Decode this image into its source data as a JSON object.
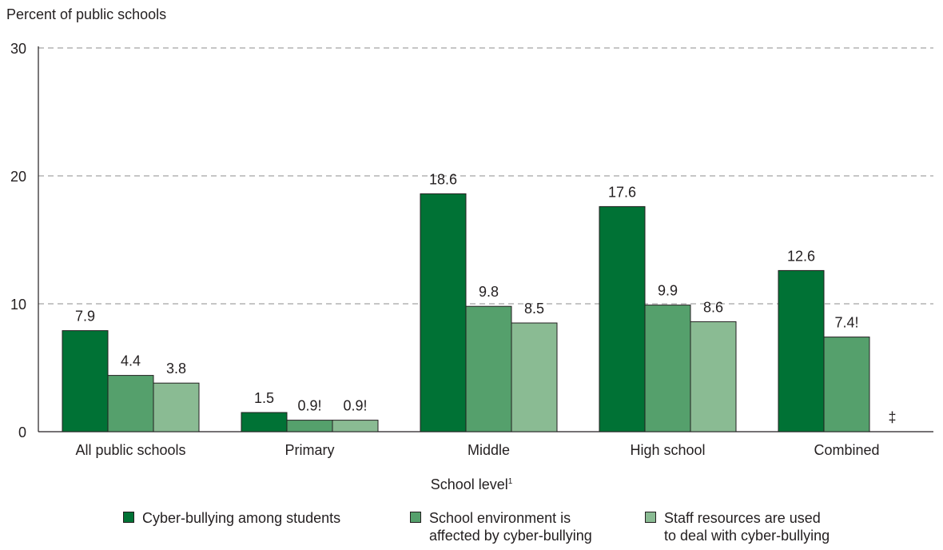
{
  "chart_data": {
    "type": "bar",
    "ylabel": "Percent of public schools",
    "xlabel": "School level",
    "xlabel_footnote": "1",
    "ylim": [
      0,
      30
    ],
    "yticks": [
      0,
      10,
      20,
      30
    ],
    "grid": "horizontal dashed",
    "categories": [
      "All public schools",
      "Primary",
      "Middle",
      "High school",
      "Combined"
    ],
    "series": [
      {
        "name": "Cyber-bullying among students",
        "color": "#007235",
        "values": [
          7.9,
          1.5,
          18.6,
          17.6,
          12.6
        ],
        "labels": [
          "7.9",
          "1.5",
          "18.6",
          "17.6",
          "12.6"
        ]
      },
      {
        "name": "School environment is\naffected by cyber-bullying",
        "color": "#55a06c",
        "values": [
          4.4,
          0.9,
          9.8,
          9.9,
          7.4
        ],
        "labels": [
          "4.4",
          "0.9!",
          "9.8",
          "9.9",
          "7.4!"
        ]
      },
      {
        "name": "Staff resources are used\nto deal with cyber-bullying",
        "color": "#8abb93",
        "values": [
          3.8,
          0.9,
          8.5,
          8.6,
          null
        ],
        "labels": [
          "3.8",
          "0.9!",
          "8.5",
          "8.6",
          "‡"
        ]
      }
    ],
    "legend_position": "bottom"
  }
}
